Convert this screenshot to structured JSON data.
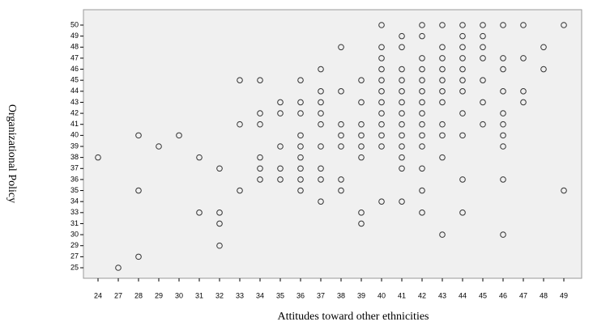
{
  "chart_data": {
    "type": "scatter",
    "xlabel": "Attitudes toward other ethnicities",
    "ylabel": "Organizational Policy",
    "xticks": [
      24,
      27,
      28,
      29,
      30,
      31,
      32,
      33,
      34,
      35,
      36,
      37,
      38,
      39,
      40,
      41,
      42,
      43,
      44,
      45,
      46,
      47,
      48,
      49
    ],
    "yticks": [
      25,
      27,
      29,
      30,
      31,
      33,
      34,
      35,
      36,
      37,
      38,
      39,
      40,
      41,
      42,
      43,
      44,
      45,
      46,
      47,
      48,
      49,
      50
    ],
    "color": "#333333",
    "x": [
      40,
      42,
      43,
      44,
      45,
      46,
      47,
      49,
      41,
      42,
      44,
      45,
      38,
      40,
      41,
      43,
      44,
      45,
      48,
      40,
      42,
      43,
      44,
      45,
      46,
      47,
      37,
      40,
      41,
      42,
      43,
      44,
      46,
      48,
      33,
      34,
      36,
      39,
      40,
      41,
      42,
      43,
      44,
      45,
      37,
      38,
      40,
      41,
      42,
      43,
      44,
      46,
      47,
      35,
      36,
      37,
      39,
      40,
      41,
      42,
      43,
      45,
      47,
      34,
      35,
      36,
      37,
      40,
      41,
      42,
      44,
      46,
      33,
      34,
      37,
      38,
      39,
      40,
      41,
      42,
      43,
      45,
      46,
      28,
      30,
      36,
      38,
      39,
      40,
      41,
      42,
      43,
      44,
      46,
      29,
      35,
      36,
      37,
      38,
      39,
      40,
      41,
      42,
      46,
      24,
      31,
      34,
      36,
      39,
      41,
      43,
      32,
      34,
      35,
      36,
      37,
      41,
      42,
      34,
      35,
      36,
      37,
      38,
      44,
      46,
      28,
      33,
      36,
      38,
      42,
      49,
      37,
      40,
      41,
      31,
      32,
      39,
      42,
      44,
      32,
      39,
      43,
      46,
      32,
      28,
      27
    ],
    "values": [
      50,
      50,
      50,
      50,
      50,
      50,
      50,
      50,
      49,
      49,
      49,
      49,
      48,
      48,
      48,
      48,
      48,
      48,
      48,
      47,
      47,
      47,
      47,
      47,
      47,
      47,
      46,
      46,
      46,
      46,
      46,
      46,
      46,
      46,
      45,
      45,
      45,
      45,
      45,
      45,
      45,
      45,
      45,
      45,
      44,
      44,
      44,
      44,
      44,
      44,
      44,
      44,
      44,
      43,
      43,
      43,
      43,
      43,
      43,
      43,
      43,
      43,
      43,
      42,
      42,
      42,
      42,
      42,
      42,
      42,
      42,
      42,
      41,
      41,
      41,
      41,
      41,
      41,
      41,
      41,
      41,
      41,
      41,
      40,
      40,
      40,
      40,
      40,
      40,
      40,
      40,
      40,
      40,
      40,
      39,
      39,
      39,
      39,
      39,
      39,
      39,
      39,
      39,
      39,
      38,
      38,
      38,
      38,
      38,
      38,
      38,
      37,
      37,
      37,
      37,
      37,
      37,
      37,
      36,
      36,
      36,
      36,
      36,
      36,
      36,
      35,
      35,
      35,
      35,
      35,
      35,
      34,
      34,
      34,
      33,
      33,
      33,
      33,
      33,
      31,
      31,
      30,
      30,
      29,
      27,
      25
    ]
  }
}
